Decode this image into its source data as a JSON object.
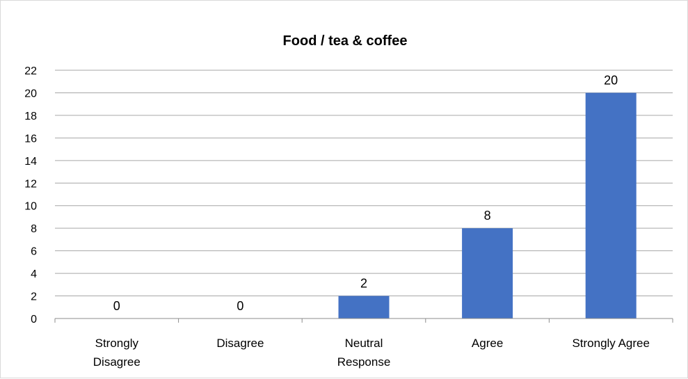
{
  "chart_data": {
    "type": "bar",
    "title": "Food / tea & coffee",
    "categories": [
      [
        "Strongly",
        "Disagree"
      ],
      [
        "Disagree"
      ],
      [
        "Neutral",
        "Response"
      ],
      [
        "Agree"
      ],
      [
        "Strongly Agree"
      ]
    ],
    "values": [
      0,
      0,
      2,
      8,
      20
    ],
    "ylim": [
      0,
      22
    ],
    "yticks": [
      0,
      2,
      4,
      6,
      8,
      10,
      12,
      14,
      16,
      18,
      20,
      22
    ],
    "grid": true,
    "bar_color": "#4472c4",
    "data_labels": true
  }
}
